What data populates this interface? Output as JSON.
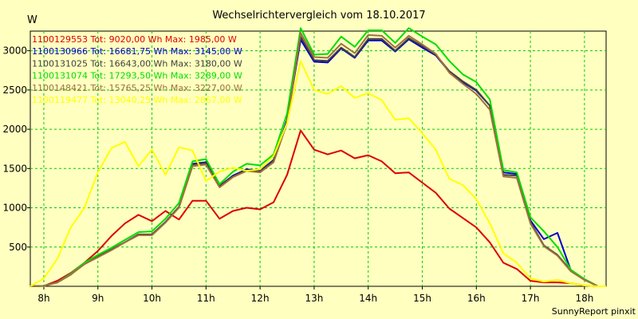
{
  "chart_data": {
    "type": "line",
    "title": "Wechselrichtervergleich vom 18.10.2017",
    "ylabel": "W",
    "credit": "SunnyReport pinxit",
    "grid": true,
    "legend_position": "top-left",
    "xlim": [
      7.75,
      18.4
    ],
    "ylim": [
      0,
      3250
    ],
    "xticks": [
      8,
      9,
      10,
      11,
      12,
      13,
      14,
      15,
      16,
      17,
      18
    ],
    "xtick_labels": [
      "8h",
      "9h",
      "10h",
      "11h",
      "12h",
      "13h",
      "14h",
      "15h",
      "16h",
      "17h",
      "18h"
    ],
    "yticks": [
      500,
      1000,
      1500,
      2000,
      2500,
      3000
    ],
    "ytick_labels": [
      "500",
      "1000",
      "1500",
      "2000",
      "2500",
      "3000"
    ],
    "x": [
      7.75,
      8.0,
      8.25,
      8.5,
      8.75,
      9.0,
      9.25,
      9.5,
      9.75,
      10.0,
      10.25,
      10.5,
      10.75,
      11.0,
      11.25,
      11.5,
      11.75,
      12.0,
      12.25,
      12.5,
      12.75,
      13.0,
      13.25,
      13.5,
      13.75,
      14.0,
      14.25,
      14.5,
      14.75,
      15.0,
      15.25,
      15.5,
      15.75,
      16.0,
      16.25,
      16.5,
      16.75,
      17.0,
      17.25,
      17.5,
      17.75,
      18.0,
      18.25,
      18.4
    ],
    "series": [
      {
        "name": "1100129553 Tot: 9020,00 Wh Max: 1985,00 W",
        "color": "#dd0000",
        "values": [
          0,
          5,
          70,
          170,
          300,
          450,
          640,
          800,
          910,
          830,
          960,
          850,
          1090,
          1090,
          860,
          960,
          1000,
          980,
          1070,
          1420,
          1985,
          1740,
          1680,
          1730,
          1630,
          1670,
          1590,
          1440,
          1450,
          1320,
          1190,
          990,
          870,
          750,
          560,
          300,
          220,
          70,
          50,
          50,
          40,
          10,
          0,
          0
        ]
      },
      {
        "name": "1100130966 Tot: 16681,75 Wh Max: 3145,00 W",
        "color": "#0000cc",
        "values": [
          0,
          5,
          50,
          150,
          290,
          380,
          470,
          560,
          660,
          660,
          820,
          1010,
          1560,
          1580,
          1280,
          1410,
          1490,
          1470,
          1610,
          2120,
          3140,
          2860,
          2850,
          3030,
          2910,
          3130,
          3130,
          2990,
          3145,
          3040,
          2940,
          2730,
          2600,
          2490,
          2300,
          1450,
          1430,
          840,
          600,
          680,
          200,
          90,
          0,
          0
        ]
      },
      {
        "name": "1100131025 Tot: 16643,00 Wh Max: 3180,00 W",
        "color": "#404040",
        "values": [
          0,
          5,
          50,
          150,
          290,
          380,
          470,
          560,
          660,
          660,
          820,
          1010,
          1550,
          1570,
          1280,
          1400,
          1480,
          1460,
          1600,
          2100,
          3180,
          2880,
          2870,
          3040,
          2920,
          3150,
          3150,
          3000,
          3160,
          3060,
          2950,
          2740,
          2610,
          2500,
          2300,
          1420,
          1410,
          820,
          520,
          400,
          200,
          90,
          0,
          0
        ]
      },
      {
        "name": "1100131074 Tot: 17293,50 Wh Max: 3289,00 W",
        "color": "#00dd00",
        "values": [
          0,
          5,
          50,
          160,
          300,
          400,
          490,
          590,
          690,
          700,
          860,
          1060,
          1590,
          1620,
          1300,
          1460,
          1560,
          1540,
          1680,
          2200,
          3289,
          2950,
          2960,
          3180,
          3050,
          3260,
          3260,
          3100,
          3289,
          3180,
          3080,
          2870,
          2700,
          2600,
          2380,
          1480,
          1450,
          880,
          700,
          500,
          210,
          90,
          0,
          0
        ]
      },
      {
        "name": "1100148421 Tot: 15765,25 Wh Max: 3227,00 W",
        "color": "#a07040",
        "values": [
          0,
          5,
          50,
          150,
          280,
          370,
          460,
          560,
          650,
          650,
          810,
          1000,
          1530,
          1550,
          1260,
          1390,
          1470,
          1450,
          1580,
          2080,
          3227,
          2920,
          2910,
          3090,
          2970,
          3200,
          3190,
          3040,
          3190,
          3080,
          2960,
          2720,
          2580,
          2450,
          2250,
          1400,
          1380,
          800,
          510,
          390,
          190,
          80,
          0,
          0
        ]
      },
      {
        "name": "1100119477 Tot: 13040,25 Wh Max: 2867,00 W",
        "color": "#ffff00",
        "values": [
          0,
          100,
          350,
          750,
          1000,
          1450,
          1760,
          1840,
          1530,
          1740,
          1420,
          1770,
          1730,
          1340,
          1460,
          1510,
          1470,
          1490,
          1660,
          2080,
          2867,
          2500,
          2450,
          2550,
          2400,
          2460,
          2370,
          2120,
          2140,
          1950,
          1740,
          1370,
          1290,
          1110,
          800,
          420,
          300,
          100,
          60,
          80,
          40,
          10,
          0,
          0
        ]
      }
    ]
  }
}
